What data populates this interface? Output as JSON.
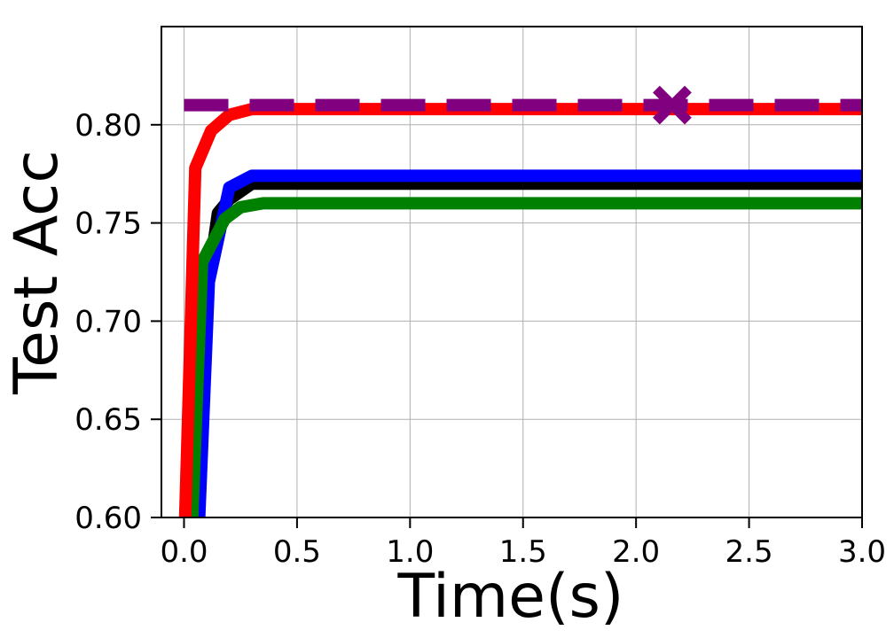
{
  "chart_data": {
    "type": "line",
    "title": "",
    "xlabel": "Time(s)",
    "ylabel": "Test Acc",
    "xlim": [
      -0.1,
      3.0
    ],
    "ylim": [
      0.6,
      0.85
    ],
    "xticks": [
      0.0,
      0.5,
      1.0,
      1.5,
      2.0,
      2.5,
      3.0
    ],
    "xtick_labels": [
      "0.0",
      "0.5",
      "1.0",
      "1.5",
      "2.0",
      "2.5",
      "3.0"
    ],
    "yticks": [
      0.6,
      0.65,
      0.7,
      0.75,
      0.8
    ],
    "ytick_labels": [
      "0.60",
      "0.65",
      "0.70",
      "0.75",
      "0.80"
    ],
    "grid": true,
    "series": [
      {
        "color": "#000000",
        "style": "solid",
        "points": [
          [
            0.03,
            0.58
          ],
          [
            0.1,
            0.715
          ],
          [
            0.15,
            0.755
          ],
          [
            0.2,
            0.762
          ],
          [
            0.3,
            0.77
          ],
          [
            3.0,
            0.77
          ]
        ]
      },
      {
        "color": "#0000ff",
        "style": "solid",
        "points": [
          [
            0.06,
            0.58
          ],
          [
            0.11,
            0.72
          ],
          [
            0.2,
            0.768
          ],
          [
            0.3,
            0.774
          ],
          [
            3.0,
            0.774
          ]
        ]
      },
      {
        "color": "#008000",
        "style": "solid",
        "points": [
          [
            0.03,
            0.58
          ],
          [
            0.08,
            0.73
          ],
          [
            0.18,
            0.752
          ],
          [
            0.25,
            0.758
          ],
          [
            0.35,
            0.76
          ],
          [
            3.0,
            0.76
          ]
        ]
      },
      {
        "color": "#ff0000",
        "style": "solid",
        "points": [
          [
            0.0,
            0.58
          ],
          [
            0.05,
            0.778
          ],
          [
            0.12,
            0.797
          ],
          [
            0.2,
            0.805
          ],
          [
            0.3,
            0.808
          ],
          [
            3.0,
            0.808
          ]
        ]
      },
      {
        "color": "#800080",
        "style": "dashed",
        "points": [
          [
            0.0,
            0.81
          ],
          [
            3.0,
            0.81
          ]
        ]
      }
    ],
    "markers": [
      {
        "shape": "x",
        "color": "#800080",
        "x": 2.16,
        "y": 0.81
      }
    ]
  }
}
